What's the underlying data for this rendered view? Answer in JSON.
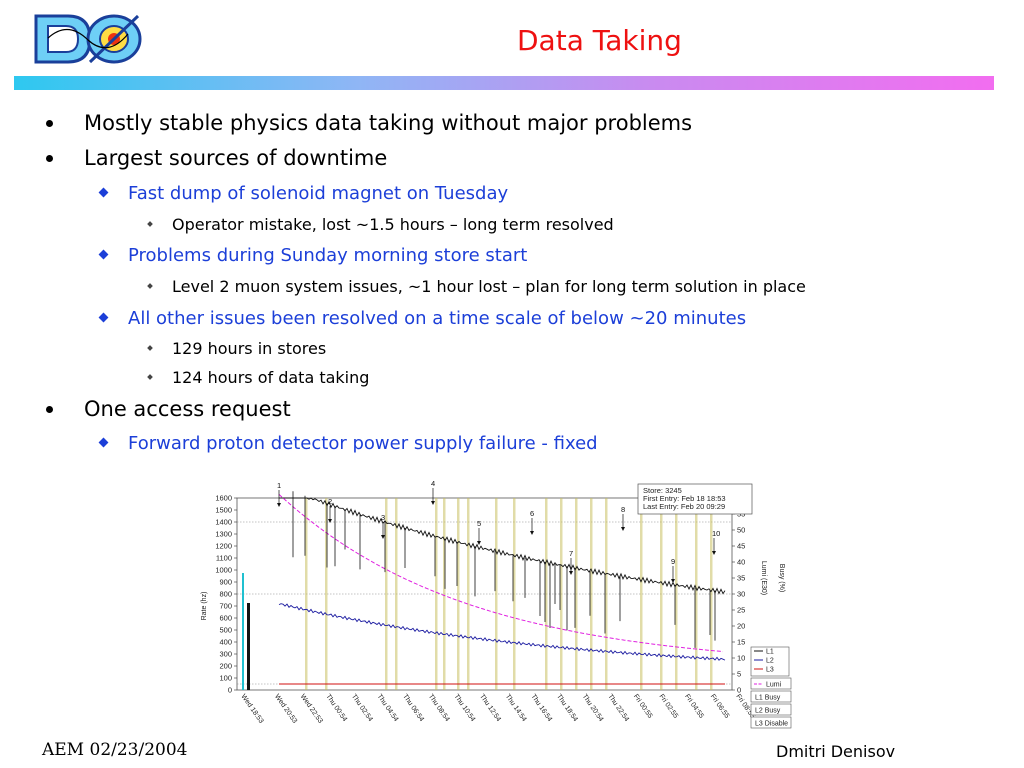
{
  "title": "Data Taking",
  "bullets": [
    {
      "text": "Mostly stable physics data taking without major problems"
    },
    {
      "text": "Largest sources of downtime"
    },
    {
      "text": "Fast dump of solenoid magnet on Tuesday"
    },
    {
      "text": "Operator mistake, lost ~1.5 hours – long term resolved"
    },
    {
      "text": "Problems during Sunday morning store start"
    },
    {
      "text": "Level 2 muon system issues, ~1 hour lost – plan for long term solution in place"
    },
    {
      "text": "All other issues been resolved on a time scale of below ~20 minutes"
    },
    {
      "text": "129 hours in stores"
    },
    {
      "text": "124 hours of data taking"
    },
    {
      "text": "One access request"
    },
    {
      "text": "Forward proton detector power supply failure - fixed"
    }
  ],
  "chart": {
    "info": {
      "store": "Store: 3245",
      "first": "First Entry: Feb 18 18:53",
      "last": "Last Entry: Feb 20 09:29"
    },
    "ylabel_left": "Rate (hz)",
    "ylabel_lumi": "Lumi (E30)",
    "ylabel_busy": "Busy (%)",
    "left_ticks": [
      "1600",
      "1500",
      "1400",
      "1300",
      "1200",
      "1100",
      "1000",
      "900",
      "800",
      "700",
      "600",
      "500",
      "400",
      "300",
      "200",
      "100",
      "0"
    ],
    "right_ticks": [
      "55",
      "50",
      "45",
      "40",
      "35",
      "30",
      "25",
      "20",
      "15",
      "10",
      "5",
      "0"
    ],
    "time_labels": [
      "Wed 18:53",
      "Wed 20:53",
      "Wed 22:53",
      "Thu 00:54",
      "Thu 02:54",
      "Thu 04:54",
      "Thu 06:54",
      "Thu 08:54",
      "Thu 10:54",
      "Thu 12:54",
      "Thu 14:54",
      "Thu 16:54",
      "Thu 18:54",
      "Thu 20:54",
      "Thu 22:54",
      "Fri 00:55",
      "Fri 02:55",
      "Fri 04:55",
      "Fri 06:55",
      "Fri 08:55"
    ],
    "markers": [
      "1",
      "2",
      "3",
      "4",
      "5",
      "6",
      "7",
      "8",
      "9",
      "10"
    ],
    "legend": [
      "L1",
      "L2",
      "L3",
      "Lumi",
      "L1 Busy",
      "L2 Busy",
      "L3 Disable"
    ],
    "colors": {
      "l1": "#111111",
      "l2": "#1a1aa0",
      "l3": "#d01010",
      "lumi": "#e020e0",
      "busy": "#c8c060",
      "cyan": "#20c0d0"
    }
  },
  "footer_left": "AEM 02/23/2004",
  "footer_right": "Dmitri Denisov"
}
